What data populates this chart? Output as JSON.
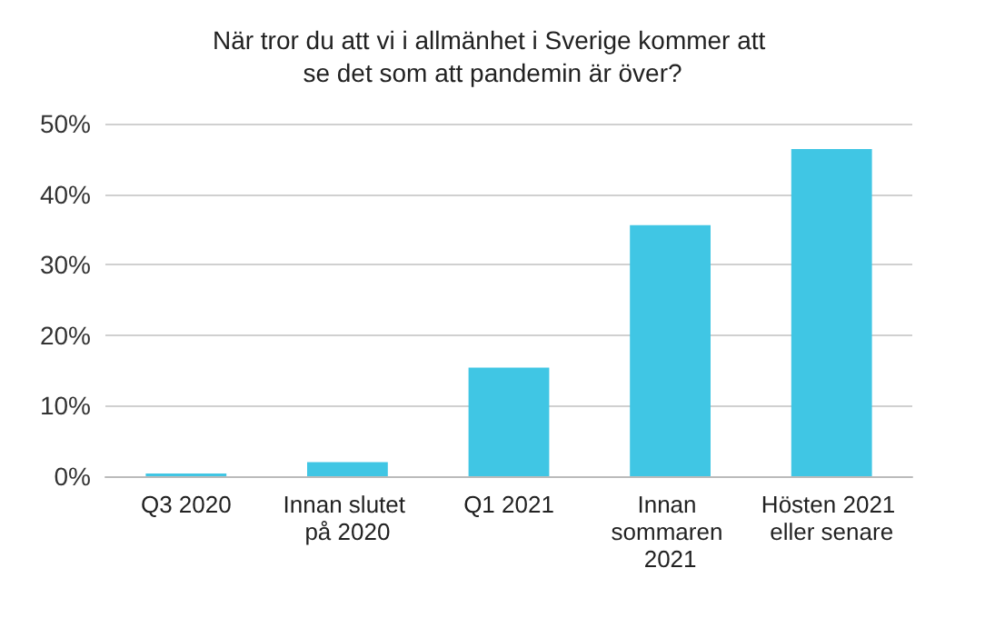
{
  "chart_data": {
    "type": "bar",
    "title": "När tror du att vi i allmänhet i Sverige kommer att se det som att pandemin är över?",
    "categories": [
      "Q3 2020",
      "Innan slutet på 2020",
      "Q1 2021",
      "Innan sommaren 2021",
      "Hösten 2021 eller senare"
    ],
    "values": [
      0.4,
      2.0,
      15.4,
      35.6,
      46.4
    ],
    "color": "#40c6e4",
    "ylim": [
      0,
      50
    ],
    "yticks": [
      {
        "value": 0,
        "label": "0%"
      },
      {
        "value": 10,
        "label": "10%"
      },
      {
        "value": 20,
        "label": "20%"
      },
      {
        "value": 30,
        "label": "30%"
      },
      {
        "value": 40,
        "label": "40%"
      },
      {
        "value": 50,
        "label": "50%"
      }
    ],
    "grid": "y"
  }
}
